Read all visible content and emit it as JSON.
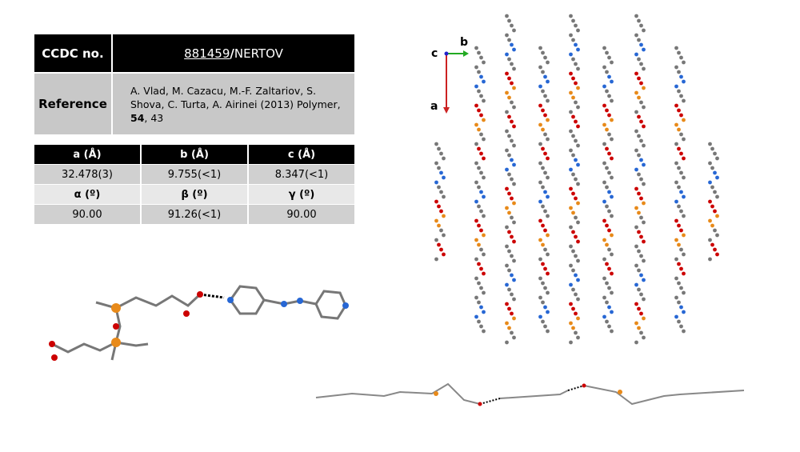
{
  "header_table": {
    "ccdc_label": "CCDC no.",
    "ccdc_number": "881459",
    "ccdc_separator": "/",
    "refcode": "NERTOV",
    "reference_label": "Reference",
    "reference_text": "A. Vlad, M. Cazacu, M.-F. Zaltariov, S. Shova, C. Turta, A. Airinei (2013) Polymer, ",
    "reference_volume": "54",
    "reference_pages": ", 43"
  },
  "cell_table": {
    "rows": [
      [
        "a (Å)",
        "b (Å)",
        "c (Å)"
      ],
      [
        "32.478(3)",
        "9.755(<1)",
        "8.347(<1)"
      ],
      [
        "α (º)",
        "β (º)",
        "γ (º)"
      ],
      [
        "90.00",
        "91.26(<1)",
        "90.00"
      ]
    ]
  },
  "packing_axes": {
    "c": "c",
    "b": "b",
    "a": "a"
  }
}
